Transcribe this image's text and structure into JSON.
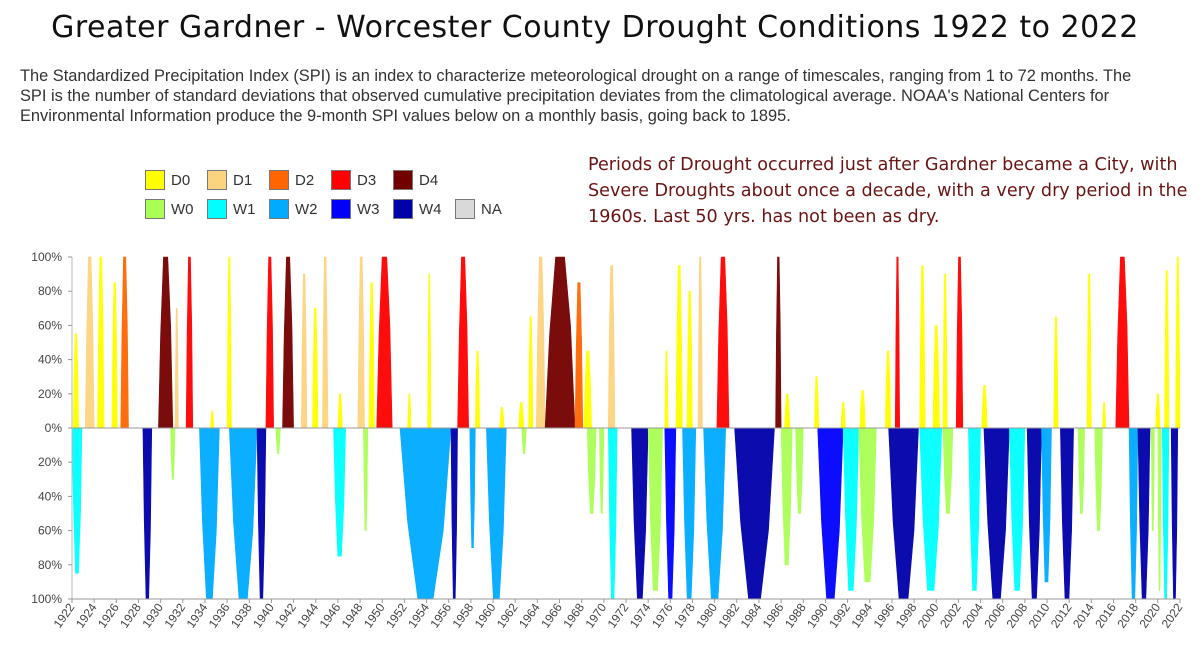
{
  "title": "Greater Gardner - Worcester County Drought Conditions 1922 to 2022",
  "description": "The Standardized Precipitation Index (SPI) is an index to characterize meteorological drought on a range of timescales, ranging from 1 to 72 months. The SPI is the number of standard deviations that observed cumulative precipitation deviates from the climatological average. NOAA's National Centers for Environmental Information produce the 9-month SPI values below on a monthly basis, going back to 1895.",
  "note": "Periods of Drought occurred just after Gardner became a City, with Severe Droughts about once a decade, with a very dry period in the 1960s.  Last 50 yrs. has not been as dry.",
  "legend": [
    {
      "label": "D0",
      "color": "#ffff00"
    },
    {
      "label": "D1",
      "color": "#fcd37f"
    },
    {
      "label": "D2",
      "color": "#ff6600"
    },
    {
      "label": "D3",
      "color": "#ff0000"
    },
    {
      "label": "D4",
      "color": "#730000"
    },
    {
      "label": "W0",
      "color": "#aaff55"
    },
    {
      "label": "W1",
      "color": "#01ffff"
    },
    {
      "label": "W2",
      "color": "#00aaff"
    },
    {
      "label": "W3",
      "color": "#0000ff"
    },
    {
      "label": "W4",
      "color": "#0000aa"
    },
    {
      "label": "NA",
      "color": "#d9d9d9"
    }
  ],
  "chart_data": {
    "type": "area",
    "y_ticks": [
      "100%",
      "80%",
      "60%",
      "40%",
      "20%",
      "0%",
      "20%",
      "40%",
      "60%",
      "80%",
      "100%"
    ],
    "ylim": [
      -100,
      100
    ],
    "xlim": [
      1922,
      2022
    ],
    "x_ticks": [
      1922,
      1924,
      1926,
      1928,
      1930,
      1932,
      1934,
      1936,
      1938,
      1940,
      1942,
      1944,
      1946,
      1948,
      1950,
      1952,
      1954,
      1956,
      1958,
      1960,
      1962,
      1964,
      1966,
      1968,
      1970,
      1972,
      1974,
      1976,
      1978,
      1980,
      1982,
      1984,
      1986,
      1988,
      1990,
      1992,
      1994,
      1996,
      1998,
      2000,
      2002,
      2004,
      2006,
      2008,
      2010,
      2012,
      2014,
      2016,
      2018,
      2020,
      2022
    ],
    "dry_periods": [
      {
        "start": 1922.1,
        "end": 1922.6,
        "peak": 55,
        "cat": "D0"
      },
      {
        "start": 1923.2,
        "end": 1924.0,
        "peak": 100,
        "cat": "D1"
      },
      {
        "start": 1924.3,
        "end": 1924.9,
        "peak": 100,
        "cat": "D0"
      },
      {
        "start": 1925.6,
        "end": 1926.1,
        "peak": 85,
        "cat": "D0"
      },
      {
        "start": 1926.4,
        "end": 1927.1,
        "peak": 100,
        "cat": "D2"
      },
      {
        "start": 1929.8,
        "end": 1931.1,
        "peak": 100,
        "cat": "D4"
      },
      {
        "start": 1931.3,
        "end": 1931.6,
        "peak": 70,
        "cat": "D1"
      },
      {
        "start": 1932.3,
        "end": 1932.9,
        "peak": 100,
        "cat": "D3"
      },
      {
        "start": 1934.5,
        "end": 1934.8,
        "peak": 10,
        "cat": "D0"
      },
      {
        "start": 1936.0,
        "end": 1936.4,
        "peak": 100,
        "cat": "D0"
      },
      {
        "start": 1939.5,
        "end": 1940.2,
        "peak": 100,
        "cat": "D3"
      },
      {
        "start": 1941.0,
        "end": 1942.0,
        "peak": 100,
        "cat": "D4"
      },
      {
        "start": 1942.7,
        "end": 1943.2,
        "peak": 90,
        "cat": "D1"
      },
      {
        "start": 1943.7,
        "end": 1944.2,
        "peak": 70,
        "cat": "D0"
      },
      {
        "start": 1944.6,
        "end": 1945.1,
        "peak": 100,
        "cat": "D1"
      },
      {
        "start": 1946.0,
        "end": 1946.4,
        "peak": 20,
        "cat": "D0"
      },
      {
        "start": 1947.8,
        "end": 1948.4,
        "peak": 100,
        "cat": "D1"
      },
      {
        "start": 1948.8,
        "end": 1949.3,
        "peak": 85,
        "cat": "D0"
      },
      {
        "start": 1949.5,
        "end": 1950.9,
        "peak": 100,
        "cat": "D3"
      },
      {
        "start": 1952.3,
        "end": 1952.6,
        "peak": 20,
        "cat": "D0"
      },
      {
        "start": 1954.1,
        "end": 1954.4,
        "peak": 90,
        "cat": "D0"
      },
      {
        "start": 1956.8,
        "end": 1957.8,
        "peak": 100,
        "cat": "D3"
      },
      {
        "start": 1958.4,
        "end": 1958.8,
        "peak": 45,
        "cat": "D0"
      },
      {
        "start": 1960.6,
        "end": 1961.0,
        "peak": 12,
        "cat": "D0"
      },
      {
        "start": 1962.3,
        "end": 1962.8,
        "peak": 15,
        "cat": "D0"
      },
      {
        "start": 1963.2,
        "end": 1963.6,
        "peak": 65,
        "cat": "D0"
      },
      {
        "start": 1963.9,
        "end": 1964.7,
        "peak": 100,
        "cat": "D1"
      },
      {
        "start": 1964.7,
        "end": 1967.4,
        "peak": 100,
        "cat": "D4"
      },
      {
        "start": 1967.4,
        "end": 1968.1,
        "peak": 85,
        "cat": "D2"
      },
      {
        "start": 1968.2,
        "end": 1968.9,
        "peak": 45,
        "cat": "D0"
      },
      {
        "start": 1970.4,
        "end": 1971.0,
        "peak": 95,
        "cat": "D1"
      },
      {
        "start": 1975.5,
        "end": 1975.8,
        "peak": 45,
        "cat": "D0"
      },
      {
        "start": 1976.5,
        "end": 1977.1,
        "peak": 95,
        "cat": "D0"
      },
      {
        "start": 1977.5,
        "end": 1978.0,
        "peak": 80,
        "cat": "D0"
      },
      {
        "start": 1978.5,
        "end": 1978.9,
        "peak": 100,
        "cat": "D1"
      },
      {
        "start": 1980.2,
        "end": 1981.3,
        "peak": 100,
        "cat": "D3"
      },
      {
        "start": 1985.5,
        "end": 1986.0,
        "peak": 100,
        "cat": "D4"
      },
      {
        "start": 1986.3,
        "end": 1986.8,
        "peak": 20,
        "cat": "D0"
      },
      {
        "start": 1989.0,
        "end": 1989.4,
        "peak": 30,
        "cat": "D0"
      },
      {
        "start": 1991.4,
        "end": 1991.8,
        "peak": 15,
        "cat": "D0"
      },
      {
        "start": 1993.1,
        "end": 1993.6,
        "peak": 22,
        "cat": "D0"
      },
      {
        "start": 1995.4,
        "end": 1995.9,
        "peak": 45,
        "cat": "D0"
      },
      {
        "start": 1996.3,
        "end": 1996.7,
        "peak": 100,
        "cat": "D3"
      },
      {
        "start": 1998.5,
        "end": 1999.0,
        "peak": 95,
        "cat": "D0"
      },
      {
        "start": 1999.7,
        "end": 2000.3,
        "peak": 60,
        "cat": "D0"
      },
      {
        "start": 2000.6,
        "end": 2001.0,
        "peak": 90,
        "cat": "D0"
      },
      {
        "start": 2001.8,
        "end": 2002.4,
        "peak": 100,
        "cat": "D3"
      },
      {
        "start": 2004.1,
        "end": 2004.6,
        "peak": 25,
        "cat": "D0"
      },
      {
        "start": 2010.6,
        "end": 2011.0,
        "peak": 65,
        "cat": "D0"
      },
      {
        "start": 2013.6,
        "end": 2014.0,
        "peak": 90,
        "cat": "D0"
      },
      {
        "start": 2015.0,
        "end": 2015.3,
        "peak": 15,
        "cat": "D0"
      },
      {
        "start": 2016.2,
        "end": 2017.4,
        "peak": 100,
        "cat": "D3"
      },
      {
        "start": 2019.8,
        "end": 2020.2,
        "peak": 20,
        "cat": "D0"
      },
      {
        "start": 2020.6,
        "end": 2021.0,
        "peak": 92,
        "cat": "D0"
      },
      {
        "start": 2021.6,
        "end": 2022.2,
        "peak": 100,
        "cat": "D0"
      }
    ],
    "wet_periods": [
      {
        "start": 1922.0,
        "end": 1922.9,
        "peak": 85,
        "cat": "W1"
      },
      {
        "start": 1928.4,
        "end": 1929.2,
        "peak": 100,
        "cat": "W4"
      },
      {
        "start": 1930.9,
        "end": 1931.3,
        "peak": 30,
        "cat": "W0"
      },
      {
        "start": 1933.5,
        "end": 1935.3,
        "peak": 100,
        "cat": "W2"
      },
      {
        "start": 1936.2,
        "end": 1938.7,
        "peak": 100,
        "cat": "W2"
      },
      {
        "start": 1938.7,
        "end": 1939.5,
        "peak": 100,
        "cat": "W4"
      },
      {
        "start": 1940.4,
        "end": 1940.8,
        "peak": 15,
        "cat": "W0"
      },
      {
        "start": 1945.6,
        "end": 1946.7,
        "peak": 75,
        "cat": "W1"
      },
      {
        "start": 1948.3,
        "end": 1948.7,
        "peak": 60,
        "cat": "W0"
      },
      {
        "start": 1951.6,
        "end": 1956.2,
        "peak": 100,
        "cat": "W2"
      },
      {
        "start": 1956.2,
        "end": 1956.8,
        "peak": 100,
        "cat": "W4"
      },
      {
        "start": 1957.9,
        "end": 1958.4,
        "peak": 70,
        "cat": "W2"
      },
      {
        "start": 1959.4,
        "end": 1961.2,
        "peak": 100,
        "cat": "W2"
      },
      {
        "start": 1962.6,
        "end": 1963.0,
        "peak": 15,
        "cat": "W0"
      },
      {
        "start": 1968.5,
        "end": 1969.3,
        "peak": 50,
        "cat": "W0"
      },
      {
        "start": 1969.6,
        "end": 1970.0,
        "peak": 50,
        "cat": "W0"
      },
      {
        "start": 1970.4,
        "end": 1971.2,
        "peak": 100,
        "cat": "W1"
      },
      {
        "start": 1972.5,
        "end": 1974.0,
        "peak": 100,
        "cat": "W4"
      },
      {
        "start": 1974.0,
        "end": 1975.3,
        "peak": 95,
        "cat": "W0"
      },
      {
        "start": 1975.5,
        "end": 1976.5,
        "peak": 100,
        "cat": "W3"
      },
      {
        "start": 1977.1,
        "end": 1978.3,
        "peak": 100,
        "cat": "W2"
      },
      {
        "start": 1979.0,
        "end": 1981.0,
        "peak": 100,
        "cat": "W2"
      },
      {
        "start": 1981.8,
        "end": 1985.4,
        "peak": 100,
        "cat": "W4"
      },
      {
        "start": 1986.0,
        "end": 1987.0,
        "peak": 80,
        "cat": "W0"
      },
      {
        "start": 1987.3,
        "end": 1988.0,
        "peak": 50,
        "cat": "W0"
      },
      {
        "start": 1989.3,
        "end": 1991.6,
        "peak": 100,
        "cat": "W3"
      },
      {
        "start": 1991.6,
        "end": 1993.0,
        "peak": 95,
        "cat": "W1"
      },
      {
        "start": 1993.0,
        "end": 1994.6,
        "peak": 90,
        "cat": "W0"
      },
      {
        "start": 1995.7,
        "end": 1998.4,
        "peak": 100,
        "cat": "W4"
      },
      {
        "start": 1998.5,
        "end": 2000.5,
        "peak": 95,
        "cat": "W1"
      },
      {
        "start": 2000.6,
        "end": 2001.5,
        "peak": 50,
        "cat": "W0"
      },
      {
        "start": 2002.9,
        "end": 2004.0,
        "peak": 95,
        "cat": "W1"
      },
      {
        "start": 2004.3,
        "end": 2006.6,
        "peak": 100,
        "cat": "W4"
      },
      {
        "start": 2006.6,
        "end": 2008.0,
        "peak": 95,
        "cat": "W1"
      },
      {
        "start": 2008.2,
        "end": 2009.5,
        "peak": 100,
        "cat": "W4"
      },
      {
        "start": 2009.5,
        "end": 2010.4,
        "peak": 90,
        "cat": "W2"
      },
      {
        "start": 2011.2,
        "end": 2012.4,
        "peak": 100,
        "cat": "W4"
      },
      {
        "start": 2012.8,
        "end": 2013.4,
        "peak": 50,
        "cat": "W0"
      },
      {
        "start": 2014.3,
        "end": 2015.0,
        "peak": 60,
        "cat": "W0"
      },
      {
        "start": 2017.4,
        "end": 2018.2,
        "peak": 100,
        "cat": "W2"
      },
      {
        "start": 2018.2,
        "end": 2019.3,
        "peak": 100,
        "cat": "W4"
      },
      {
        "start": 2019.4,
        "end": 2019.7,
        "peak": 60,
        "cat": "W0"
      },
      {
        "start": 2020.0,
        "end": 2020.3,
        "peak": 95,
        "cat": "W0"
      },
      {
        "start": 2020.4,
        "end": 2021.0,
        "peak": 100,
        "cat": "W1"
      },
      {
        "start": 2021.2,
        "end": 2021.8,
        "peak": 100,
        "cat": "W4"
      }
    ],
    "grid": false,
    "legend_position": "top-left"
  }
}
